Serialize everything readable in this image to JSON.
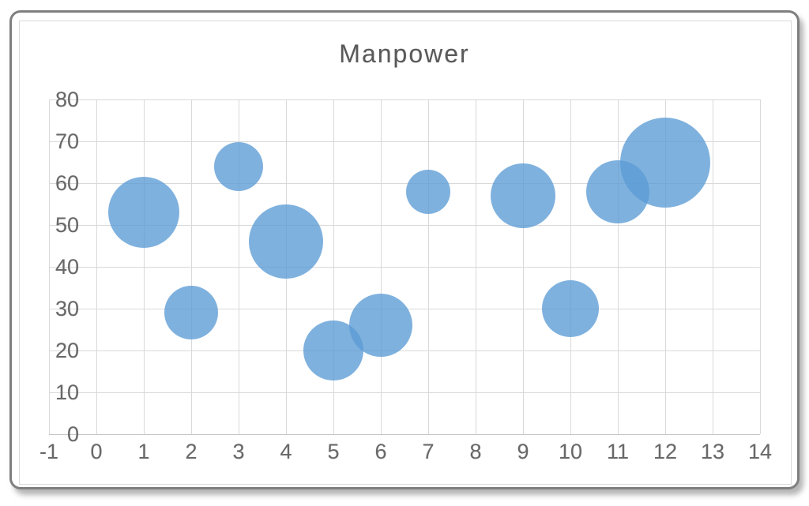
{
  "frame": {
    "background": "#ffffff",
    "outer_border_color": "#7f7f7f",
    "inner_border_color": "#d9d9d9"
  },
  "colors": {
    "gridline": "#d9d9d9",
    "axis_label": "#686868",
    "title": "#595959",
    "bubble_fill": "#5B9BD5"
  },
  "chart_data": {
    "type": "scatter",
    "subtype": "bubble",
    "title": "Manpower",
    "xlabel": "",
    "ylabel": "",
    "xlim": [
      -1,
      14
    ],
    "ylim": [
      0,
      80
    ],
    "x_tick_labels": [
      "-1",
      "0",
      "1",
      "2",
      "3",
      "4",
      "5",
      "6",
      "7",
      "8",
      "9",
      "10",
      "11",
      "12",
      "13",
      "14"
    ],
    "y_tick_labels": [
      "0",
      "10",
      "20",
      "30",
      "40",
      "50",
      "60",
      "70",
      "80"
    ],
    "grid": true,
    "legend": "none",
    "bubble_opacity": 0.78,
    "series": [
      {
        "name": "Manpower",
        "points": [
          {
            "x": 1,
            "y": 53,
            "radius_px": 45
          },
          {
            "x": 2,
            "y": 29,
            "radius_px": 34
          },
          {
            "x": 3,
            "y": 64,
            "radius_px": 31
          },
          {
            "x": 4,
            "y": 46,
            "radius_px": 47
          },
          {
            "x": 5,
            "y": 20,
            "radius_px": 38
          },
          {
            "x": 6,
            "y": 26,
            "radius_px": 40
          },
          {
            "x": 7,
            "y": 58,
            "radius_px": 28
          },
          {
            "x": 9,
            "y": 57,
            "radius_px": 41
          },
          {
            "x": 10,
            "y": 30,
            "radius_px": 36
          },
          {
            "x": 11,
            "y": 58,
            "radius_px": 40
          },
          {
            "x": 12,
            "y": 65,
            "radius_px": 57
          }
        ]
      }
    ]
  }
}
